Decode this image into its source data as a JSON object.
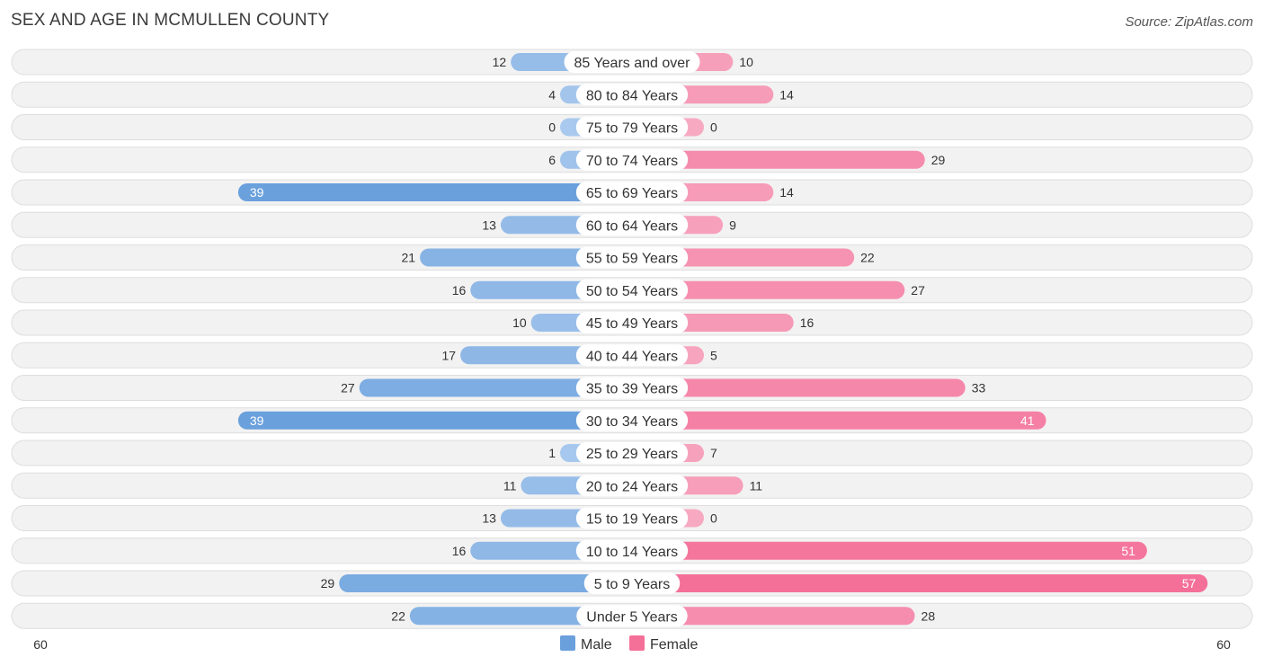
{
  "header": {
    "title": "SEX AND AGE IN MCMULLEN COUNTY",
    "source": "Source: ZipAtlas.com"
  },
  "colors": {
    "male": "#6aa0dc",
    "male_light": "#a9c9ee",
    "female": "#f47099",
    "female_light": "#f7a9c2"
  },
  "chart_data": {
    "type": "bar",
    "orientation": "horizontal-diverging",
    "title": "SEX AND AGE IN MCMULLEN COUNTY",
    "categories": [
      "85 Years and over",
      "80 to 84 Years",
      "75 to 79 Years",
      "70 to 74 Years",
      "65 to 69 Years",
      "60 to 64 Years",
      "55 to 59 Years",
      "50 to 54 Years",
      "45 to 49 Years",
      "40 to 44 Years",
      "35 to 39 Years",
      "30 to 34 Years",
      "25 to 29 Years",
      "20 to 24 Years",
      "15 to 19 Years",
      "10 to 14 Years",
      "5 to 9 Years",
      "Under 5 Years"
    ],
    "series": [
      {
        "name": "Male",
        "values": [
          12,
          4,
          0,
          6,
          39,
          13,
          21,
          16,
          10,
          17,
          27,
          39,
          1,
          11,
          13,
          16,
          29,
          22
        ]
      },
      {
        "name": "Female",
        "values": [
          10,
          14,
          0,
          29,
          14,
          9,
          22,
          27,
          16,
          5,
          33,
          41,
          7,
          11,
          0,
          51,
          57,
          28
        ]
      }
    ],
    "axis": {
      "left_label": "60",
      "right_label": "60",
      "max": 60
    },
    "legend": [
      {
        "name": "Male"
      },
      {
        "name": "Female"
      }
    ],
    "legend_position": "bottom-center"
  }
}
